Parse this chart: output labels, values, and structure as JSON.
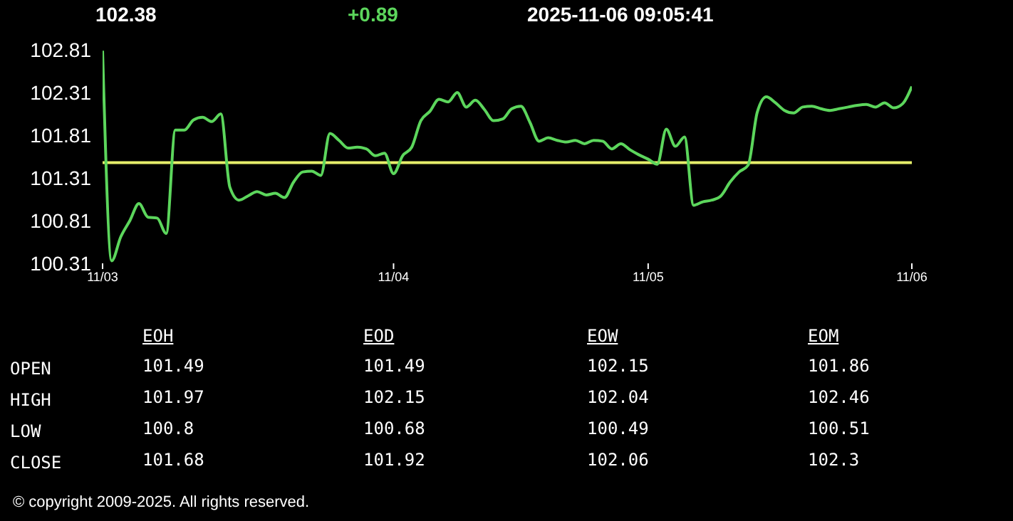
{
  "chart_data": [
    {
      "type": "line",
      "title": "102.38",
      "subtitle": "+0.89",
      "annotations": [
        "2025-11-06 09:05:41"
      ],
      "categories": [
        "11/03",
        null,
        null,
        null,
        null,
        null,
        null,
        null,
        null,
        null,
        null,
        null,
        null,
        null,
        null,
        null,
        null,
        null,
        null,
        null,
        null,
        null,
        null,
        null,
        null,
        null,
        null,
        null,
        null,
        null,
        null,
        null,
        "11/04",
        null,
        null,
        null,
        null,
        null,
        null,
        null,
        null,
        null,
        null,
        null,
        null,
        null,
        null,
        null,
        null,
        null,
        null,
        null,
        null,
        null,
        null,
        null,
        null,
        null,
        null,
        null,
        "11/05",
        null,
        null,
        null,
        null,
        null,
        null,
        null,
        null,
        null,
        null,
        null,
        null,
        null,
        null,
        null,
        null,
        null,
        null,
        null,
        null,
        null,
        null,
        null,
        null,
        null,
        null,
        null,
        null,
        "11/06"
      ],
      "ylim": [
        100.31,
        102.81
      ],
      "yticks": [
        100.31,
        100.81,
        101.31,
        101.81,
        102.31,
        102.81
      ],
      "grid": false,
      "legend": false,
      "marker": "none",
      "ref_lines": [
        {
          "axis": "y",
          "value": 101.49,
          "color": "#e6ee6a"
        }
      ],
      "series": [
        {
          "color": "#5cd65c",
          "values": [
            102.8,
            100.34,
            100.62,
            100.81,
            101.01,
            100.85,
            100.84,
            100.66,
            101.87,
            101.87,
            101.99,
            102.02,
            101.97,
            102.06,
            101.2,
            101.05,
            101.1,
            101.15,
            101.11,
            101.13,
            101.08,
            101.26,
            101.38,
            101.39,
            101.34,
            101.83,
            101.75,
            101.66,
            101.67,
            101.65,
            101.57,
            101.6,
            101.36,
            101.57,
            101.67,
            101.98,
            102.09,
            102.23,
            102.2,
            102.31,
            102.14,
            102.22,
            102.11,
            101.98,
            102.0,
            102.12,
            102.15,
            101.96,
            101.74,
            101.78,
            101.75,
            101.73,
            101.75,
            101.71,
            101.75,
            101.74,
            101.65,
            101.71,
            101.64,
            101.58,
            101.53,
            101.47,
            101.88,
            101.68,
            101.79,
            100.99,
            101.03,
            101.05,
            101.1,
            101.26,
            101.38,
            101.46,
            102.08,
            102.26,
            102.19,
            102.1,
            102.07,
            102.14,
            102.15,
            102.12,
            102.1,
            102.12,
            102.14,
            102.16,
            102.17,
            102.14,
            102.19,
            102.13,
            102.18,
            102.38
          ]
        }
      ]
    },
    {
      "type": "heatmap",
      "categories": [
        "EOH",
        "EOD",
        "EOW",
        "EOM"
      ],
      "y_categories": [
        "OPEN",
        "HIGH",
        "LOW",
        "CLOSE"
      ],
      "data_labels": true,
      "cells": [
        [
          101.49,
          101.49,
          102.15,
          101.86
        ],
        [
          101.97,
          102.15,
          102.04,
          102.46
        ],
        [
          100.8,
          100.68,
          100.49,
          100.51
        ],
        [
          101.68,
          101.92,
          102.06,
          102.3
        ]
      ],
      "annotations": [
        "© copyright 2009-2025. All rights reserved."
      ]
    }
  ]
}
